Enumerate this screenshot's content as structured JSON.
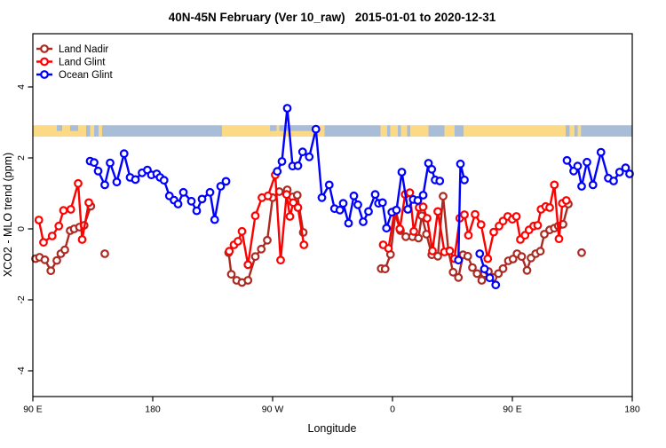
{
  "window": {
    "title": "40N-45N February (Ver 10_raw)   2015-01-01 to 2020-12-31"
  },
  "chart_data": {
    "type": "line",
    "title": "40N-45N February (Ver 10_raw)   2015-01-01 to 2020-12-31",
    "xlabel": "Longitude",
    "ylabel": "XCO2 - MLO trend (ppm)",
    "x_axis": {
      "note": "longitude axis wraps eastward starting at 90E; internal coord = degrees east of 0 from 90 to 540",
      "range": [
        90,
        540
      ],
      "ticks": [
        {
          "pos": 90,
          "label": "90 E"
        },
        {
          "pos": 180,
          "label": "180"
        },
        {
          "pos": 270,
          "label": "90 W"
        },
        {
          "pos": 360,
          "label": "0"
        },
        {
          "pos": 450,
          "label": "90 E"
        },
        {
          "pos": 540,
          "label": "180"
        }
      ]
    },
    "y_axis": {
      "range": [
        -4.73,
        5.5
      ],
      "ticks": [
        {
          "pos": 4,
          "label": "4"
        },
        {
          "pos": 2,
          "label": "2"
        },
        {
          "pos": 0,
          "label": "0"
        },
        {
          "pos": -2,
          "label": "-2"
        },
        {
          "pos": -4,
          "label": "-4"
        }
      ]
    },
    "grid": false,
    "legend_position": "top-left-inside",
    "map_band": {
      "description": "40N-45N latitude land/ocean strip drawn across the plot",
      "value_top": 2.92,
      "value_bottom": 2.6,
      "land_color": "#FBD985",
      "ocean_color": "#A8BDD8",
      "segments": [
        {
          "from": 90,
          "to": 130,
          "type": "land"
        },
        {
          "from": 130,
          "to": 133,
          "type": "ocean"
        },
        {
          "from": 133,
          "to": 136,
          "type": "land"
        },
        {
          "from": 136,
          "to": 139.5,
          "type": "ocean"
        },
        {
          "from": 139.5,
          "to": 142,
          "type": "land"
        },
        {
          "from": 142,
          "to": 232,
          "type": "ocean"
        },
        {
          "from": 232,
          "to": 309,
          "type": "land"
        },
        {
          "from": 309,
          "to": 351,
          "type": "ocean"
        },
        {
          "from": 351,
          "to": 356,
          "type": "land"
        },
        {
          "from": 356,
          "to": 358.5,
          "type": "ocean"
        },
        {
          "from": 358.5,
          "to": 364,
          "type": "land"
        },
        {
          "from": 364,
          "to": 366.5,
          "type": "ocean"
        },
        {
          "from": 366.5,
          "to": 371,
          "type": "land"
        },
        {
          "from": 371,
          "to": 373.5,
          "type": "ocean"
        },
        {
          "from": 373.5,
          "to": 387,
          "type": "land"
        },
        {
          "from": 387,
          "to": 399,
          "type": "ocean"
        },
        {
          "from": 399,
          "to": 406.5,
          "type": "land"
        },
        {
          "from": 406.5,
          "to": 413.5,
          "type": "ocean"
        },
        {
          "from": 413.5,
          "to": 490,
          "type": "land"
        },
        {
          "from": 490,
          "to": 493,
          "type": "ocean"
        },
        {
          "from": 493,
          "to": 496.5,
          "type": "land"
        },
        {
          "from": 496.5,
          "to": 540,
          "type": "ocean"
        }
      ],
      "patches": [
        {
          "from": 108,
          "to": 112,
          "type": "ocean",
          "pos": "top"
        },
        {
          "from": 118,
          "to": 124,
          "type": "ocean",
          "pos": "top"
        },
        {
          "from": 268,
          "to": 273,
          "type": "ocean",
          "pos": "top"
        },
        {
          "from": 275,
          "to": 284,
          "type": "ocean",
          "pos": "top"
        },
        {
          "from": 284,
          "to": 300,
          "type": "ocean",
          "pos": "top"
        },
        {
          "from": 499,
          "to": 501.5,
          "type": "land",
          "pos": "full"
        }
      ]
    },
    "series": [
      {
        "name": "Land Nadir",
        "color": "#AB2A22",
        "segments": [
          [
            [
              92,
              -0.84
            ],
            [
              95,
              -0.8
            ],
            [
              99,
              -0.87
            ],
            [
              103.5,
              -1.18
            ],
            [
              108,
              -0.89
            ],
            [
              111,
              -0.7
            ],
            [
              114,
              -0.59
            ],
            [
              118,
              -0.05
            ],
            [
              121,
              0.0
            ],
            [
              125,
              0.05
            ],
            [
              128.5,
              0.1
            ],
            [
              133.5,
              0.64
            ]
          ],
          [
            [
              144,
              -0.7
            ]
          ],
          [
            [
              237,
              -0.67
            ],
            [
              239,
              -1.28
            ],
            [
              243,
              -1.45
            ],
            [
              247,
              -1.51
            ],
            [
              251.5,
              -1.45
            ],
            [
              257,
              -0.78
            ],
            [
              261.5,
              -0.57
            ],
            [
              266,
              -0.32
            ],
            [
              270,
              0.88
            ],
            [
              275,
              1.05
            ],
            [
              281,
              1.1
            ],
            [
              285,
              0.9
            ],
            [
              288.5,
              0.95
            ],
            [
              293,
              -0.1
            ]
          ],
          [
            [
              351.5,
              -1.12
            ],
            [
              354.5,
              -1.13
            ],
            [
              358.5,
              -0.72
            ],
            [
              362.5,
              0.52
            ],
            [
              366,
              -0.05
            ],
            [
              370,
              -0.22
            ],
            [
              375,
              -0.22
            ],
            [
              379.5,
              -0.26
            ],
            [
              382,
              0.37
            ],
            [
              385.5,
              -0.15
            ],
            [
              389.5,
              -0.73
            ],
            [
              394,
              -0.77
            ],
            [
              398,
              0.92
            ],
            [
              402,
              -0.63
            ],
            [
              405.5,
              -1.22
            ],
            [
              409.5,
              -1.37
            ],
            [
              413,
              -0.73
            ],
            [
              416.5,
              -0.77
            ],
            [
              420,
              -1.09
            ],
            [
              423.5,
              -1.26
            ],
            [
              427,
              -1.45
            ],
            [
              429,
              -1.26
            ],
            [
              432,
              -1.2
            ],
            [
              435.5,
              -1.37
            ],
            [
              439.5,
              -1.26
            ],
            [
              443,
              -1.12
            ],
            [
              447,
              -0.9
            ],
            [
              450.5,
              -0.85
            ],
            [
              453.5,
              -0.7
            ],
            [
              457,
              -0.78
            ],
            [
              461,
              -1.17
            ],
            [
              464,
              -0.82
            ],
            [
              467.5,
              -0.7
            ],
            [
              471,
              -0.63
            ],
            [
              474,
              -0.15
            ],
            [
              478,
              -0.03
            ],
            [
              481.5,
              0.02
            ],
            [
              484.5,
              0.08
            ],
            [
              488,
              0.13
            ],
            [
              492,
              0.7
            ]
          ],
          [
            [
              502,
              -0.67
            ]
          ]
        ]
      },
      {
        "name": "Land Glint",
        "color": "#FF0000",
        "segments": [
          [
            [
              94.5,
              0.25
            ],
            [
              98,
              -0.38
            ],
            [
              104.5,
              -0.2
            ],
            [
              109.5,
              0.08
            ],
            [
              113,
              0.52
            ],
            [
              118.5,
              0.55
            ],
            [
              124,
              1.28
            ],
            [
              127,
              -0.3
            ],
            [
              132,
              0.74
            ]
          ],
          [
            [
              237.5,
              -0.63
            ],
            [
              241,
              -0.45
            ],
            [
              244,
              -0.35
            ],
            [
              247,
              -0.07
            ],
            [
              251.5,
              -1.01
            ],
            [
              257,
              0.37
            ],
            [
              262,
              0.88
            ],
            [
              266.5,
              0.93
            ],
            [
              272,
              1.52
            ],
            [
              276,
              -0.88
            ],
            [
              280.5,
              0.97
            ],
            [
              283,
              0.35
            ],
            [
              285.5,
              0.74
            ],
            [
              289,
              0.6
            ],
            [
              293.5,
              -0.45
            ]
          ],
          [
            [
              353,
              -0.45
            ],
            [
              357,
              -0.55
            ],
            [
              361.5,
              0.49
            ],
            [
              365.5,
              0.0
            ],
            [
              369.5,
              0.97
            ],
            [
              373,
              1.02
            ],
            [
              376,
              -0.07
            ],
            [
              380,
              0.6
            ],
            [
              383,
              0.62
            ],
            [
              386,
              0.3
            ],
            [
              390,
              -0.62
            ],
            [
              394,
              0.49
            ],
            [
              399,
              -0.65
            ],
            [
              403,
              -0.62
            ],
            [
              406.5,
              -0.84
            ],
            [
              410.5,
              0.3
            ],
            [
              414,
              0.4
            ],
            [
              417,
              -0.18
            ],
            [
              422,
              0.41
            ],
            [
              426.5,
              0.12
            ],
            [
              431.5,
              -0.84
            ],
            [
              436,
              -0.09
            ],
            [
              440,
              0.08
            ],
            [
              443,
              0.22
            ],
            [
              446.5,
              0.35
            ],
            [
              450,
              0.27
            ],
            [
              453,
              0.35
            ],
            [
              456,
              -0.3
            ],
            [
              459.5,
              -0.18
            ],
            [
              462.5,
              -0.03
            ],
            [
              466,
              0.08
            ],
            [
              469,
              0.1
            ],
            [
              471.5,
              0.55
            ],
            [
              475,
              0.63
            ],
            [
              478,
              0.6
            ],
            [
              481.5,
              1.24
            ],
            [
              485,
              -0.28
            ],
            [
              487.5,
              0.72
            ],
            [
              490.5,
              0.8
            ]
          ]
        ]
      },
      {
        "name": "Ocean Glint",
        "color": "#0000FF",
        "segments": [
          [
            [
              133,
              1.91
            ],
            [
              136,
              1.87
            ],
            [
              139,
              1.63
            ],
            [
              144,
              1.24
            ],
            [
              148,
              1.86
            ],
            [
              153,
              1.32
            ],
            [
              158.5,
              2.12
            ],
            [
              163,
              1.45
            ],
            [
              167,
              1.39
            ],
            [
              172,
              1.58
            ],
            [
              176,
              1.66
            ],
            [
              179,
              1.52
            ],
            [
              183,
              1.55
            ],
            [
              185.5,
              1.45
            ],
            [
              188.5,
              1.37
            ],
            [
              192.5,
              0.93
            ],
            [
              196,
              0.81
            ],
            [
              199,
              0.7
            ],
            [
              203,
              1.03
            ],
            [
              209,
              0.78
            ],
            [
              213,
              0.51
            ],
            [
              217,
              0.84
            ],
            [
              223,
              1.03
            ],
            [
              226.5,
              0.26
            ],
            [
              231,
              1.2
            ],
            [
              235,
              1.34
            ]
          ],
          [
            [
              273.5,
              1.62
            ],
            [
              277,
              1.9
            ],
            [
              281,
              3.4
            ],
            [
              285,
              1.77
            ],
            [
              289,
              1.78
            ],
            [
              292.5,
              2.17
            ],
            [
              297.5,
              2.03
            ],
            [
              302.5,
              2.81
            ],
            [
              307,
              0.88
            ],
            [
              312.5,
              1.24
            ],
            [
              316.5,
              0.57
            ],
            [
              320.5,
              0.53
            ],
            [
              323,
              0.72
            ],
            [
              327,
              0.16
            ],
            [
              331,
              0.93
            ],
            [
              334,
              0.68
            ],
            [
              338,
              0.2
            ],
            [
              342,
              0.49
            ],
            [
              347,
              0.97
            ],
            [
              349.5,
              0.72
            ],
            [
              352.5,
              0.74
            ],
            [
              355.5,
              0.02
            ],
            [
              359.5,
              0.47
            ],
            [
              363,
              0.53
            ],
            [
              367,
              1.6
            ],
            [
              371.5,
              0.55
            ],
            [
              375.5,
              0.83
            ],
            [
              379,
              0.8
            ],
            [
              383,
              0.95
            ],
            [
              387,
              1.85
            ],
            [
              389.5,
              1.68
            ],
            [
              392,
              1.38
            ],
            [
              395.5,
              1.35
            ]
          ],
          [
            [
              409.5,
              -0.88
            ],
            [
              411,
              1.83
            ],
            [
              414,
              1.38
            ]
          ],
          [
            [
              425.5,
              -0.7
            ],
            [
              429,
              -1.13
            ],
            [
              433,
              -1.38
            ],
            [
              437.5,
              -1.58
            ]
          ],
          [
            [
              491,
              1.93
            ],
            [
              496,
              1.63
            ],
            [
              499,
              1.77
            ],
            [
              502,
              1.2
            ],
            [
              506,
              1.88
            ],
            [
              510.5,
              1.24
            ],
            [
              516.5,
              2.16
            ],
            [
              522,
              1.43
            ],
            [
              526,
              1.35
            ],
            [
              530.5,
              1.6
            ],
            [
              535,
              1.72
            ],
            [
              538,
              1.55
            ]
          ]
        ]
      }
    ],
    "legend": {
      "entries": [
        "Land Nadir",
        "Land Glint",
        "Ocean Glint"
      ]
    }
  }
}
